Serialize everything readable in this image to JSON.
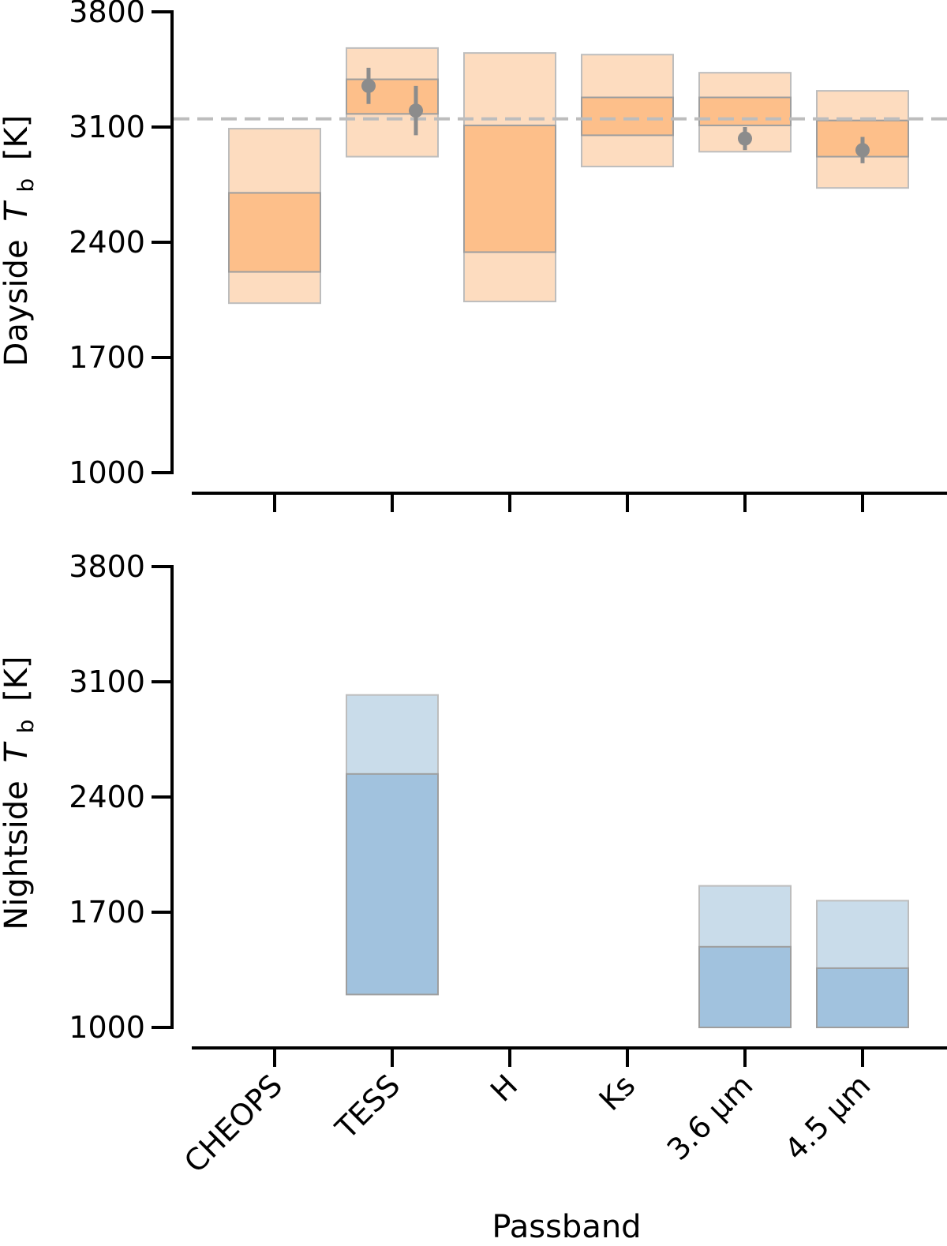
{
  "chart_data": [
    {
      "type": "bar",
      "panel": "top",
      "ylabel": "Dayside",
      "ylabel_symbol": "T",
      "ylabel_subscript": "b",
      "ylabel_unit": "[K]",
      "ylim": [
        1000,
        3800
      ],
      "yticks": [
        "1000",
        "1700",
        "2400",
        "3100",
        "3800"
      ],
      "categories": [
        "CHEOPS",
        "TESS",
        "H",
        "Ks",
        "3.6 μm",
        "4.5 μm"
      ],
      "color": "#fdbf8a",
      "outer_color": "#fddcbf",
      "reference_line": 3150,
      "ranges": [
        {
          "category": "CHEOPS",
          "inner": [
            2220,
            2700
          ],
          "outer": [
            2030,
            3090
          ]
        },
        {
          "category": "TESS",
          "inner": [
            3180,
            3390
          ],
          "outer": [
            2920,
            3580
          ]
        },
        {
          "category": "H",
          "inner": [
            2340,
            3110
          ],
          "outer": [
            2040,
            3550
          ]
        },
        {
          "category": "Ks",
          "inner": [
            3050,
            3280
          ],
          "outer": [
            2860,
            3540
          ]
        },
        {
          "category": "3.6 μm",
          "inner": [
            3110,
            3280
          ],
          "outer": [
            2950,
            3430
          ]
        },
        {
          "category": "4.5 μm",
          "inner": [
            2920,
            3140
          ],
          "outer": [
            2730,
            3320
          ]
        }
      ],
      "points": [
        {
          "category": "TESS",
          "offset": -0.1,
          "y": 3350,
          "err": 110
        },
        {
          "category": "TESS",
          "offset": 0.1,
          "y": 3200,
          "err": 150
        },
        {
          "category": "3.6 μm",
          "offset": 0,
          "y": 3030,
          "err": 70
        },
        {
          "category": "4.5 μm",
          "offset": 0,
          "y": 2960,
          "err": 80
        }
      ]
    },
    {
      "type": "bar",
      "panel": "bottom",
      "ylabel": "Nightside",
      "ylabel_symbol": "T",
      "ylabel_subscript": "b",
      "ylabel_unit": "[K]",
      "ylim": [
        1000,
        3800
      ],
      "yticks": [
        "1000",
        "1700",
        "2400",
        "3100",
        "3800"
      ],
      "categories": [
        "CHEOPS",
        "TESS",
        "H",
        "Ks",
        "3.6 μm",
        "4.5 μm"
      ],
      "xlabel": "Passband",
      "color": "#a1c2de",
      "outer_color": "#c9dcea",
      "ranges": [
        {
          "category": "TESS",
          "inner": [
            1200,
            2540
          ],
          "outer": [
            1200,
            3020
          ]
        },
        {
          "category": "3.6 μm",
          "inner": [
            1000,
            1490
          ],
          "outer": [
            1000,
            1860
          ]
        },
        {
          "category": "4.5 μm",
          "inner": [
            1000,
            1360
          ],
          "outer": [
            1000,
            1770
          ]
        }
      ]
    }
  ]
}
